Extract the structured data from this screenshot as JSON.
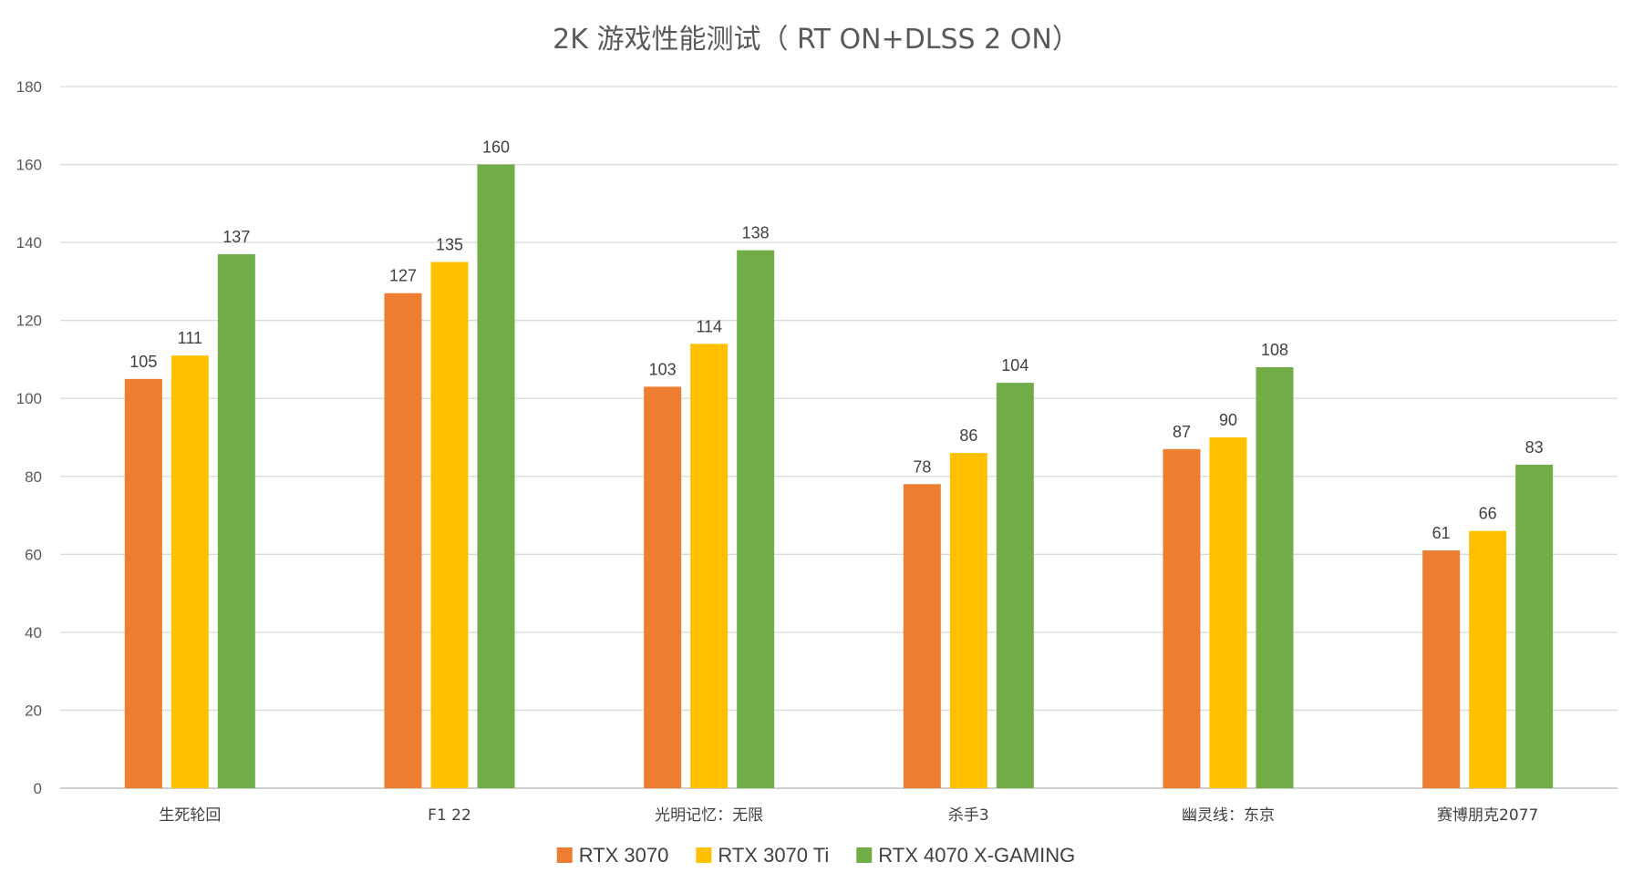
{
  "chart_data": {
    "type": "bar",
    "title": "2K 游戏性能测试（ RT ON+DLSS 2 ON）",
    "xlabel": "",
    "ylabel": "",
    "ylim": [
      0,
      180
    ],
    "yticks": [
      0,
      20,
      40,
      60,
      80,
      100,
      120,
      140,
      160,
      180
    ],
    "grid": true,
    "legend_position": "bottom",
    "categories": [
      "生死轮回",
      "F1 22",
      "光明记忆：无限",
      "杀手3",
      "幽灵线：东京",
      "赛博朋克2077"
    ],
    "series": [
      {
        "name": "RTX 3070",
        "color": "#ed7d31",
        "values": [
          105,
          127,
          103,
          78,
          87,
          61
        ]
      },
      {
        "name": "RTX 3070 Ti",
        "color": "#ffc000",
        "values": [
          111,
          135,
          114,
          86,
          90,
          66
        ]
      },
      {
        "name": "RTX 4070 X-GAMING",
        "color": "#70ad47",
        "values": [
          137,
          160,
          138,
          104,
          108,
          83
        ]
      }
    ]
  }
}
